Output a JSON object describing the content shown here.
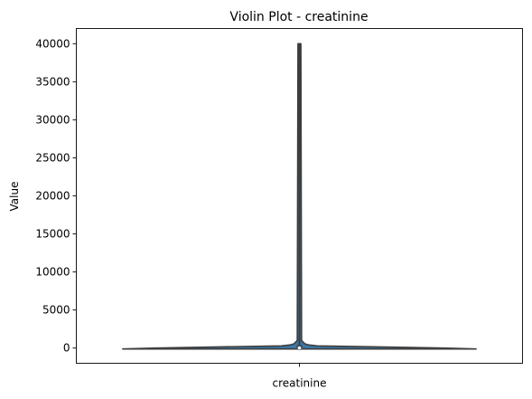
{
  "chart_data": {
    "type": "violin",
    "title": "Violin Plot - creatinine",
    "xlabel": "",
    "ylabel": "Value",
    "categories": [
      "creatinine"
    ],
    "ylim": [
      -2000,
      42000
    ],
    "yticks": [
      0,
      5000,
      10000,
      15000,
      20000,
      25000,
      30000,
      35000,
      40000
    ],
    "grid": false,
    "legend": "none",
    "series": [
      {
        "category": "creatinine",
        "min": -120,
        "max": 40000,
        "q1": 0,
        "median": 0,
        "q3": 300,
        "density_profile": [
          {
            "y": -120,
            "halfwidth": 0.99
          },
          {
            "y": 0,
            "halfwidth": 0.8
          },
          {
            "y": 150,
            "halfwidth": 0.45
          },
          {
            "y": 280,
            "halfwidth": 0.1
          },
          {
            "y": 420,
            "halfwidth": 0.05
          },
          {
            "y": 560,
            "halfwidth": 0.03
          },
          {
            "y": 1000,
            "halfwidth": 0.012
          },
          {
            "y": 40000,
            "halfwidth": 0.008
          }
        ]
      }
    ],
    "colors": {
      "violin_fill": "#3a78a6",
      "violin_edge": "#3d3d3d",
      "box": "#3d3d3d",
      "median_dot": "#ffffff"
    }
  }
}
